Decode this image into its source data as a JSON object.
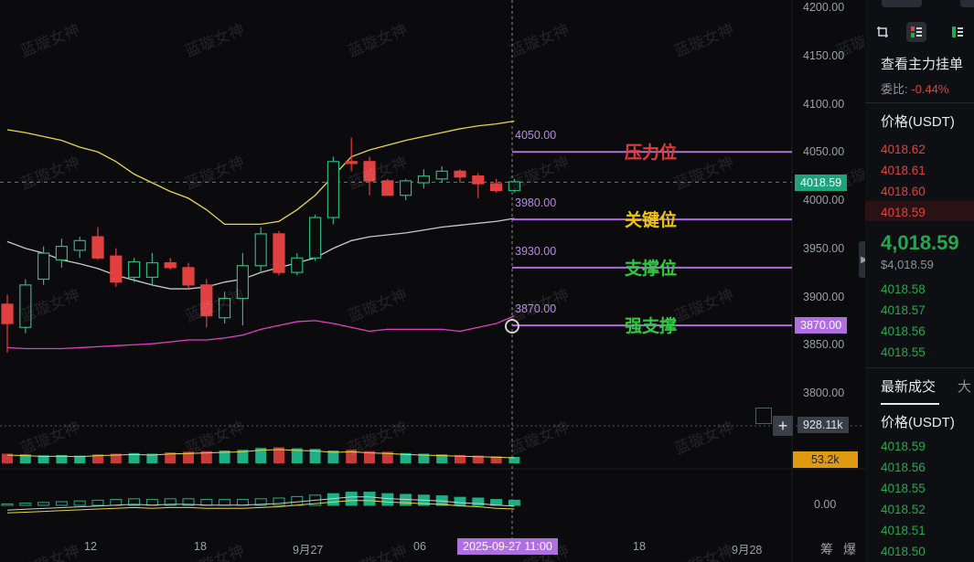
{
  "watermark": "蓝璇女神",
  "chart_data": {
    "type": "candlestick",
    "ylim": [
      3755,
      4205
    ],
    "y_ticks": [
      "4200.00",
      "4150.00",
      "4100.00",
      "4050.00",
      "4000.00",
      "3950.00",
      "3900.00",
      "3850.00",
      "3800.00"
    ],
    "x_ticks": [
      "12",
      "18",
      "9月27",
      "06",
      "18",
      "9月28"
    ],
    "crosshair_label": "2025-09-27 11:00",
    "current_price": "4018.59",
    "candles": [
      {
        "o": 3892,
        "h": 3902,
        "l": 3842,
        "c": 3872
      },
      {
        "o": 3868,
        "h": 3918,
        "l": 3862,
        "c": 3912
      },
      {
        "o": 3918,
        "h": 3952,
        "l": 3912,
        "c": 3945
      },
      {
        "o": 3938,
        "h": 3960,
        "l": 3930,
        "c": 3952
      },
      {
        "o": 3948,
        "h": 3962,
        "l": 3940,
        "c": 3958
      },
      {
        "o": 3962,
        "h": 3972,
        "l": 3938,
        "c": 3940
      },
      {
        "o": 3942,
        "h": 3950,
        "l": 3910,
        "c": 3915
      },
      {
        "o": 3920,
        "h": 3940,
        "l": 3915,
        "c": 3936
      },
      {
        "o": 3920,
        "h": 3945,
        "l": 3912,
        "c": 3935
      },
      {
        "o": 3935,
        "h": 3940,
        "l": 3928,
        "c": 3930
      },
      {
        "o": 3930,
        "h": 3935,
        "l": 3908,
        "c": 3912
      },
      {
        "o": 3912,
        "h": 3918,
        "l": 3868,
        "c": 3880
      },
      {
        "o": 3878,
        "h": 3905,
        "l": 3872,
        "c": 3898
      },
      {
        "o": 3898,
        "h": 3945,
        "l": 3870,
        "c": 3932
      },
      {
        "o": 3932,
        "h": 3972,
        "l": 3925,
        "c": 3965
      },
      {
        "o": 3965,
        "h": 3968,
        "l": 3922,
        "c": 3925
      },
      {
        "o": 3925,
        "h": 3945,
        "l": 3922,
        "c": 3940
      },
      {
        "o": 3940,
        "h": 3985,
        "l": 3937,
        "c": 3982
      },
      {
        "o": 3982,
        "h": 4045,
        "l": 3975,
        "c": 4040
      },
      {
        "o": 4040,
        "h": 4065,
        "l": 4030,
        "c": 4038
      },
      {
        "o": 4040,
        "h": 4045,
        "l": 4005,
        "c": 4020
      },
      {
        "o": 4020,
        "h": 4022,
        "l": 4005,
        "c": 4005
      },
      {
        "o": 4005,
        "h": 4022,
        "l": 4000,
        "c": 4020
      },
      {
        "o": 4018,
        "h": 4032,
        "l": 4012,
        "c": 4025
      },
      {
        "o": 4022,
        "h": 4035,
        "l": 4018,
        "c": 4030
      },
      {
        "o": 4030,
        "h": 4032,
        "l": 4018,
        "c": 4024
      },
      {
        "o": 4025,
        "h": 4028,
        "l": 4002,
        "c": 4017
      },
      {
        "o": 4017,
        "h": 4022,
        "l": 4008,
        "c": 4010
      },
      {
        "o": 4010,
        "h": 4022,
        "l": 4008,
        "c": 4019
      }
    ],
    "upper_band": [
      4073,
      4070,
      4066,
      4062,
      4055,
      4050,
      4040,
      4027,
      4018,
      4009,
      4002,
      3990,
      3975,
      3975,
      3975,
      3978,
      3990,
      4005,
      4025,
      4045,
      4052,
      4057,
      4062,
      4066,
      4070,
      4074,
      4077,
      4079,
      4082
    ],
    "middle_band": [
      3957,
      3950,
      3945,
      3938,
      3934,
      3929,
      3922,
      3917,
      3912,
      3908,
      3908,
      3910,
      3915,
      3918,
      3925,
      3930,
      3935,
      3940,
      3950,
      3958,
      3962,
      3964,
      3966,
      3969,
      3972,
      3974,
      3976,
      3978,
      3981
    ],
    "lower_band": [
      3847,
      3846,
      3846,
      3846,
      3847,
      3848,
      3849,
      3850,
      3851,
      3853,
      3855,
      3855,
      3857,
      3860,
      3866,
      3870,
      3874,
      3875,
      3872,
      3868,
      3864,
      3866,
      3866,
      3866,
      3866,
      3864,
      3868,
      3872,
      3880
    ],
    "levels": [
      {
        "price_label": "4050.00",
        "name": "压力位",
        "value": 4050,
        "color": "#e23b3b"
      },
      {
        "price_label": "3980.00",
        "name": "关键位",
        "value": 3980,
        "color": "#f1c40f"
      },
      {
        "price_label": "3930.00",
        "name": "支撑位",
        "value": 3930,
        "color": "#2ecc40"
      },
      {
        "price_label": "3870.00",
        "name": "强支撑",
        "value": 3870,
        "color": "#2ecc40"
      }
    ],
    "level_badge": "3870.00",
    "volume_label": "928.11k",
    "indicator_label": "53.2k",
    "macd_zero": "0.00",
    "bottom_right_labels": [
      "筹",
      "爆"
    ],
    "volume": [
      30,
      28,
      25,
      26,
      24,
      28,
      30,
      32,
      30,
      34,
      36,
      38,
      40,
      42,
      48,
      50,
      47,
      45,
      40,
      42,
      38,
      36,
      32,
      30,
      28,
      26,
      24,
      22,
      20
    ],
    "macd": [
      2,
      3,
      4,
      5,
      6,
      7,
      8,
      9,
      8,
      9,
      9,
      8,
      8,
      8,
      9,
      10,
      12,
      14,
      16,
      18,
      18,
      16,
      15,
      14,
      13,
      11,
      10,
      8,
      7
    ]
  },
  "panel": {
    "title": "查看主力挂单",
    "ratio_label": "委比:",
    "ratio_value": "-0.44%",
    "price_header": "价格(USDT)",
    "asks": [
      "4018.62",
      "4018.61",
      "4018.60",
      "4018.59"
    ],
    "last_price": "4,018.59",
    "last_price_sub": "$4,018.59",
    "bids": [
      "4018.58",
      "4018.57",
      "4018.56",
      "4018.55"
    ],
    "trades_tab": "最新成交",
    "trades_tab2": "大",
    "trades_header": "价格(USDT)",
    "trades": [
      "4018.59",
      "4018.56",
      "4018.55",
      "4018.52",
      "4018.51",
      "4018.50"
    ],
    "colors": {
      "up": "#25a750",
      "down": "#e04040",
      "accent": "#e8eaee"
    }
  }
}
